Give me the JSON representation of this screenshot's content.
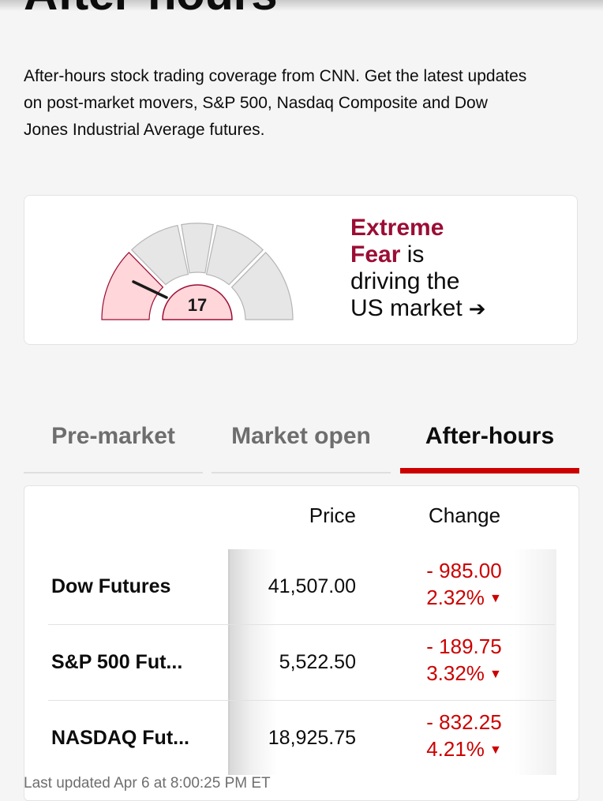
{
  "page": {
    "title": "After-hours",
    "intro": "After-hours stock trading coverage from CNN. Get the latest updates on post-market movers, S&P 500, Nasdaq Composite and Dow Jones Industrial Average futures."
  },
  "fear_greed": {
    "value": "17",
    "mood_line1": "Extreme",
    "mood_line2": "Fear",
    "suffix": " is",
    "line3": "driving the",
    "line4": "US market",
    "arrow_icon": "arrow-right-icon",
    "colors": {
      "active": "#ffd6d9",
      "active_stroke": "#9b0d35",
      "inactive": "#e6e6e6"
    }
  },
  "tabs": [
    {
      "label": "Pre-market",
      "active": false
    },
    {
      "label": "Market open",
      "active": false
    },
    {
      "label": "After-hours",
      "active": true
    }
  ],
  "table": {
    "headers": {
      "price": "Price",
      "change": "Change"
    },
    "rows": [
      {
        "name": "Dow Futures",
        "price": "41,507.00",
        "change": "- 985.00",
        "percent": "2.32%"
      },
      {
        "name": "S&P 500 Fut...",
        "price": "5,522.50",
        "change": "- 189.75",
        "percent": "3.32%"
      },
      {
        "name": "NASDAQ Fut...",
        "price": "18,925.75",
        "change": "- 832.25",
        "percent": "4.21%"
      }
    ],
    "down_icon": "triangle-down-icon",
    "down_color": "#cc0000"
  },
  "footer": {
    "updated": "Last updated Apr 6 at 8:00:25 PM ET"
  },
  "colors": {
    "accent": "#cc0000",
    "fear": "#9b0d35"
  }
}
